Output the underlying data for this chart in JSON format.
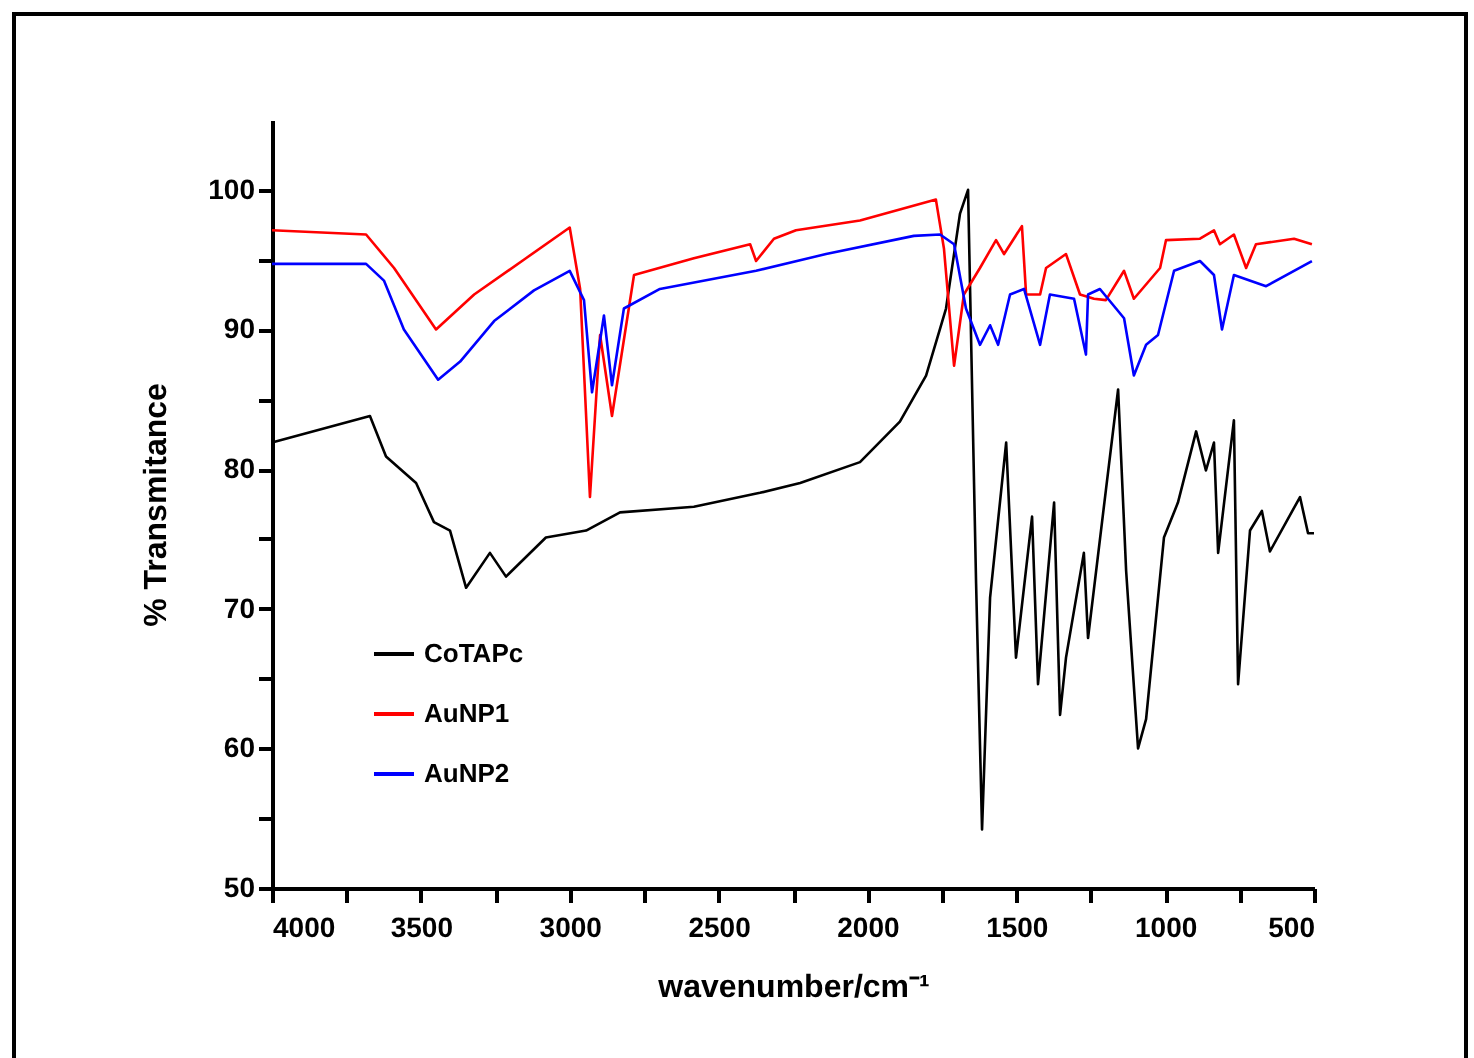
{
  "chart_data": {
    "type": "line",
    "xlabel": "wavenumber/cm⁻¹",
    "ylabel": "% Transmitance",
    "xlim": [
      4000,
      500
    ],
    "ylim": [
      50,
      105
    ],
    "xticks": [
      4000,
      {
        "value": 3750,
        "label": null
      },
      3500,
      {
        "value": 3250,
        "label": null
      },
      3000,
      {
        "value": 2750,
        "label": null
      },
      2500,
      {
        "value": 2250,
        "label": null
      },
      2000,
      {
        "value": 1750,
        "label": null
      },
      1500,
      {
        "value": 1250,
        "label": null
      },
      1000,
      {
        "value": 750,
        "label": null
      },
      500
    ],
    "yticks": [
      50,
      {
        "value": 55,
        "label": null
      },
      60,
      {
        "value": 65,
        "label": null
      },
      70,
      {
        "value": 75,
        "label": null
      },
      80,
      {
        "value": 85,
        "label": null
      },
      90,
      {
        "value": 95,
        "label": null
      },
      100
    ],
    "grid": false,
    "legend": "bottom left",
    "line_style": "solid",
    "marker": "none",
    "series": [
      {
        "name": "CoTAPc",
        "color": "#000000",
        "x": [
          4000,
          3671,
          3617,
          3516,
          3456,
          3402,
          3348,
          3268,
          3214,
          3080,
          2945,
          2831,
          2583,
          2361,
          2226,
          2025,
          1891,
          1803,
          1736,
          1689,
          1662,
          1635,
          1615,
          1588,
          1534,
          1501,
          1447,
          1427,
          1373,
          1353,
          1333,
          1273,
          1259,
          1199,
          1158,
          1131,
          1091,
          1064,
          1004,
          957,
          896,
          863,
          836,
          822,
          769,
          755,
          715,
          675,
          648,
          547,
          520,
          500
        ],
        "values": [
          81.9,
          83.8,
          80.9,
          79.0,
          76.2,
          75.6,
          71.5,
          74.0,
          72.3,
          75.1,
          75.6,
          76.9,
          77.3,
          78.3,
          79.0,
          80.5,
          83.4,
          86.7,
          91.5,
          98.3,
          100,
          71.8,
          54.2,
          70.8,
          81.9,
          66.5,
          76.6,
          64.6,
          77.6,
          62.4,
          66.5,
          74.0,
          67.9,
          78.5,
          85.7,
          72.7,
          60.0,
          62.1,
          75.1,
          77.6,
          82.7,
          79.9,
          81.9,
          74.0,
          83.5,
          64.6,
          75.6,
          77.0,
          74.1,
          78.0,
          75.4,
          75.4
        ]
      },
      {
        "name": "AuNP1",
        "color": "#ff0000",
        "x": [
          4000,
          3684,
          3590,
          3449,
          3321,
          3147,
          3000,
          2965,
          2932,
          2898,
          2858,
          2784,
          2583,
          2394,
          2374,
          2314,
          2240,
          2025,
          1770,
          1743,
          1709,
          1676,
          1622,
          1568,
          1541,
          1481,
          1467,
          1420,
          1400,
          1333,
          1286,
          1239,
          1199,
          1138,
          1105,
          1017,
          997,
          883,
          836,
          816,
          769,
          728,
          695,
          567,
          507
        ],
        "values": [
          97.1,
          96.8,
          94.4,
          90.0,
          92.5,
          95.1,
          97.3,
          92.9,
          78.0,
          89.6,
          83.8,
          93.9,
          95.1,
          96.1,
          94.9,
          96.5,
          97.1,
          97.8,
          99.3,
          95.8,
          87.4,
          92.5,
          94.4,
          96.4,
          95.4,
          97.4,
          92.5,
          92.5,
          94.4,
          95.4,
          92.5,
          92.2,
          92.1,
          94.2,
          92.2,
          94.4,
          96.4,
          96.5,
          97.1,
          96.1,
          96.8,
          94.4,
          96.1,
          96.5,
          96.1
        ]
      },
      {
        "name": "AuNP2",
        "color": "#0000ff",
        "x": [
          4000,
          3684,
          3624,
          3557,
          3442,
          3368,
          3254,
          3120,
          3000,
          2952,
          2925,
          2885,
          2858,
          2818,
          2697,
          2374,
          2139,
          1844,
          1756,
          1709,
          1669,
          1622,
          1588,
          1561,
          1521,
          1474,
          1420,
          1387,
          1306,
          1266,
          1259,
          1219,
          1138,
          1105,
          1064,
          1024,
          970,
          883,
          836,
          809,
          769,
          661,
          507
        ],
        "values": [
          94.7,
          94.7,
          93.5,
          90.0,
          86.4,
          87.7,
          90.6,
          92.8,
          94.2,
          92.1,
          85.5,
          91.0,
          86.0,
          91.5,
          92.9,
          94.2,
          95.4,
          96.7,
          96.8,
          96.1,
          91.5,
          88.9,
          90.3,
          88.9,
          92.5,
          92.9,
          88.9,
          92.5,
          92.2,
          88.2,
          92.5,
          92.9,
          90.8,
          86.7,
          88.9,
          89.6,
          94.2,
          94.9,
          93.9,
          90.0,
          93.9,
          93.1,
          94.9
        ]
      }
    ]
  }
}
